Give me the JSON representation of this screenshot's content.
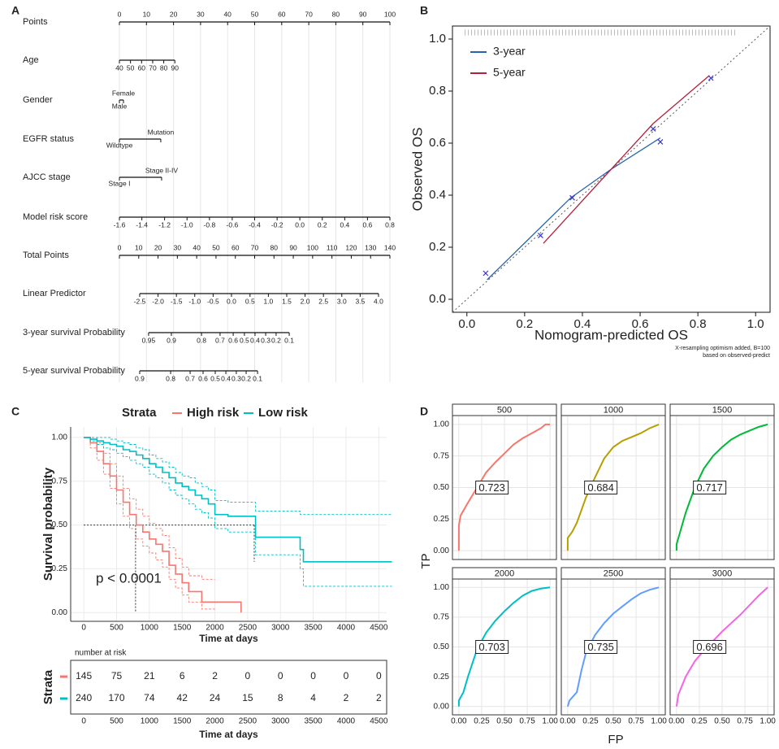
{
  "chart_data": [
    {
      "panel": "A",
      "type": "nomogram",
      "rows": [
        {
          "label": "Points",
          "scale": "points",
          "ticks": [
            0,
            10,
            20,
            30,
            40,
            50,
            60,
            70,
            80,
            90,
            100
          ]
        },
        {
          "label": "Age",
          "scale": "points",
          "ticks": [
            "40",
            "50",
            "60",
            "70",
            "80",
            "90"
          ],
          "points": [
            0,
            4.1,
            8.2,
            12.3,
            16.4,
            20.5
          ]
        },
        {
          "label": "Gender",
          "scale": "points",
          "ticks": [
            "Male",
            "Female"
          ],
          "points": [
            0,
            1.5
          ]
        },
        {
          "label": "EGFR status",
          "scale": "points",
          "ticks": [
            "Wildtype",
            "Mutation"
          ],
          "points": [
            0,
            15.3
          ]
        },
        {
          "label": "AJCC stage",
          "scale": "points",
          "ticks": [
            "Stage I",
            "Stage II-IV"
          ],
          "points": [
            0,
            15.6
          ]
        },
        {
          "label": "Model risk score",
          "scale": "points",
          "ticks": [
            "-1.6",
            "-1.4",
            "-1.2",
            "-1.0",
            "-0.8",
            "-0.6",
            "-0.4",
            "-0.2",
            "0.0",
            "0.2",
            "0.4",
            "0.6",
            "0.8"
          ],
          "points": [
            0,
            8.3,
            16.7,
            25,
            33.3,
            41.7,
            50,
            58.3,
            66.7,
            75,
            83.3,
            91.7,
            100
          ]
        },
        {
          "label": "Total Points",
          "scale": "total",
          "ticks": [
            0,
            10,
            20,
            30,
            40,
            50,
            60,
            70,
            80,
            90,
            100,
            110,
            120,
            130,
            140
          ]
        },
        {
          "label": "Linear Predictor",
          "scale": "total",
          "ticks": [
            "-2.5",
            "-2.0",
            "-1.5",
            "-1.0",
            "-0.5",
            "0.0",
            "0.5",
            "1.0",
            "1.5",
            "2.0",
            "2.5",
            "3.0",
            "3.5",
            "4.0"
          ],
          "points": [
            10.5,
            20.0,
            29.5,
            39.0,
            48.5,
            58.0,
            67.6,
            77.1,
            86.6,
            96.1,
            105.6,
            115.1,
            124.6,
            134.1
          ]
        },
        {
          "label": "3-year survival Probability",
          "scale": "total",
          "ticks": [
            "0.95",
            "0.9",
            "0.8",
            "0.7",
            "0.6",
            "0.5",
            "0.4",
            "0.3",
            "0.2",
            "0.1"
          ],
          "points": [
            15.1,
            26.9,
            42.5,
            52.1,
            58.9,
            64.7,
            70.2,
            75.7,
            81.1,
            87.9
          ]
        },
        {
          "label": "5-year survival Probability",
          "scale": "total",
          "ticks": [
            "0.9",
            "0.8",
            "0.7",
            "0.6",
            "0.5",
            "0.4",
            "0.3",
            "0.2",
            "0.1"
          ],
          "points": [
            10.5,
            26.5,
            36.6,
            43.3,
            49.6,
            55.1,
            60.5,
            65.6,
            71.5
          ]
        }
      ]
    },
    {
      "panel": "B",
      "type": "line",
      "xlabel": "Nomogram-predicted OS",
      "ylabel": "Observed OS",
      "xlim": [
        -0.05,
        1.05
      ],
      "ylim": [
        -0.05,
        1.05
      ],
      "xticks": [
        {
          "value": 0,
          "label": "0.0"
        },
        0.2,
        0.4,
        0.6,
        0.8,
        {
          "value": 1,
          "label": "1.0"
        }
      ],
      "yticks": [
        {
          "value": 0,
          "label": "0.0"
        },
        0.2,
        0.4,
        0.6,
        0.8,
        {
          "value": 1,
          "label": "1.0"
        }
      ],
      "legend": "top-left",
      "reference_line": true,
      "series": [
        {
          "name": "3-year",
          "color": "#2a64ad",
          "x": [
            0.07,
            0.36,
            0.5,
            0.67
          ],
          "values": [
            0.075,
            0.39,
            0.5,
            0.62
          ]
        },
        {
          "name": "5-year",
          "color": "#b3203c",
          "x": [
            0.265,
            0.5,
            0.645,
            0.84
          ],
          "values": [
            0.215,
            0.5,
            0.675,
            0.86
          ]
        }
      ],
      "markers": {
        "color": "#3434d4",
        "x": [
          0.065,
          0.255,
          0.365,
          0.645,
          0.67,
          0.845
        ],
        "values": [
          0.1,
          0.245,
          0.39,
          0.655,
          0.605,
          0.85
        ]
      },
      "note": [
        "X-resampling optimism added, B=100",
        "based on observed-predict"
      ]
    },
    {
      "panel": "C",
      "type": "step",
      "legend_title": "Strata",
      "legend": "top",
      "xlabel": "Time at days",
      "ylabel": "Survival probability",
      "annotation": "p < 0.0001",
      "xlim": [
        -200,
        4620
      ],
      "ylim": [
        -0.05,
        1.06
      ],
      "xticks": [
        0,
        500,
        1000,
        1500,
        2000,
        2500,
        3000,
        3500,
        4000,
        4500
      ],
      "yticks": [
        {
          "value": 0,
          "label": "0.00"
        },
        0.25,
        {
          "value": 0.5,
          "label": "0.50"
        },
        0.75,
        {
          "value": 1,
          "label": "1.00"
        }
      ],
      "grid": true,
      "median_level": 0.5,
      "series": [
        {
          "name": "High risk",
          "color": "#F8766D",
          "median": 790,
          "x": [
            0,
            100,
            200,
            300,
            400,
            500,
            600,
            700,
            800,
            900,
            1000,
            1100,
            1200,
            1300,
            1400,
            1500,
            1600,
            1800,
            2000,
            2400
          ],
          "values": [
            1,
            0.97,
            0.92,
            0.85,
            0.78,
            0.7,
            0.63,
            0.56,
            0.5,
            0.46,
            0.42,
            0.39,
            0.35,
            0.27,
            0.22,
            0.17,
            0.12,
            0.06,
            0.06,
            0
          ],
          "upper": [
            1,
            1,
            0.97,
            0.91,
            0.85,
            0.78,
            0.71,
            0.65,
            0.59,
            0.55,
            0.51,
            0.48,
            0.44,
            0.37,
            0.31,
            0.26,
            0.21,
            0.19,
            0.19,
            null
          ],
          "lower": [
            1,
            0.94,
            0.87,
            0.79,
            0.71,
            0.62,
            0.55,
            0.48,
            0.42,
            0.38,
            0.34,
            0.3,
            0.26,
            0.19,
            0.14,
            0.1,
            0.06,
            0.02,
            0.02,
            null
          ]
        },
        {
          "name": "Low risk",
          "color": "#00BFC4",
          "median": 2600,
          "x": [
            0,
            100,
            200,
            300,
            400,
            500,
            600,
            700,
            800,
            900,
            1000,
            1100,
            1200,
            1300,
            1400,
            1500,
            1600,
            1700,
            1800,
            1900,
            2000,
            2200,
            2620,
            3300,
            3350,
            4700
          ],
          "values": [
            1,
            0.99,
            0.98,
            0.97,
            0.96,
            0.95,
            0.93,
            0.92,
            0.9,
            0.88,
            0.85,
            0.83,
            0.8,
            0.77,
            0.74,
            0.72,
            0.7,
            0.67,
            0.65,
            0.62,
            0.56,
            0.55,
            0.43,
            0.36,
            0.29,
            0.29
          ],
          "upper": [
            1,
            1,
            1,
            1,
            0.99,
            0.98,
            0.97,
            0.96,
            0.94,
            0.93,
            0.9,
            0.88,
            0.86,
            0.83,
            0.8,
            0.78,
            0.77,
            0.74,
            0.72,
            0.7,
            0.64,
            0.63,
            0.58,
            0.56,
            0.56,
            0.56
          ],
          "lower": [
            1,
            0.98,
            0.96,
            0.94,
            0.93,
            0.91,
            0.89,
            0.87,
            0.85,
            0.83,
            0.79,
            0.77,
            0.74,
            0.7,
            0.67,
            0.65,
            0.62,
            0.59,
            0.57,
            0.54,
            0.48,
            0.46,
            0.33,
            0.25,
            0.15,
            0.15
          ]
        }
      ]
    },
    {
      "type": "table",
      "title": "number at risk",
      "ylabel": "Strata",
      "xlabel": "Time at days",
      "xlim": [
        -200,
        4620
      ],
      "xticks": [
        0,
        500,
        1000,
        1500,
        2000,
        2500,
        3000,
        3500,
        4000,
        4500
      ],
      "rows": [
        {
          "color": "#F8766D",
          "values": [
            145,
            75,
            21,
            6,
            2,
            0,
            0,
            0,
            0,
            0
          ]
        },
        {
          "color": "#00BFC4",
          "values": [
            240,
            170,
            74,
            42,
            24,
            15,
            8,
            4,
            2,
            2
          ]
        }
      ]
    },
    {
      "panel": "D",
      "type": "roc",
      "xlabel": "FP",
      "ylabel": "TP",
      "xlim": [
        -0.07,
        1.07
      ],
      "ylim": [
        -0.07,
        1.07
      ],
      "grid": true,
      "xticks": [
        {
          "value": 0,
          "label": "0.00"
        },
        0.25,
        {
          "value": 0.5,
          "label": "0.50"
        },
        0.75,
        {
          "value": 1,
          "label": "1.00"
        }
      ],
      "yticks": [
        {
          "value": 0,
          "label": "0.00"
        },
        0.25,
        {
          "value": 0.5,
          "label": "0.50"
        },
        0.75,
        {
          "value": 1,
          "label": "1.00"
        }
      ],
      "facets": [
        {
          "title": 500,
          "auc": 0.723,
          "color": "#F8766D",
          "x": [
            0,
            0,
            0.02,
            0.1,
            0.2,
            0.3,
            0.4,
            0.5,
            0.6,
            0.7,
            0.8,
            0.9,
            0.95,
            1
          ],
          "values": [
            0,
            0.2,
            0.28,
            0.38,
            0.5,
            0.62,
            0.7,
            0.77,
            0.84,
            0.89,
            0.93,
            0.97,
            1,
            1
          ]
        },
        {
          "title": 1000,
          "auc": 0.684,
          "color": "#B79F00",
          "x": [
            0,
            0,
            0.05,
            0.1,
            0.2,
            0.3,
            0.4,
            0.5,
            0.6,
            0.7,
            0.8,
            0.9,
            1
          ],
          "values": [
            0,
            0.1,
            0.15,
            0.22,
            0.42,
            0.58,
            0.73,
            0.82,
            0.87,
            0.9,
            0.93,
            0.97,
            1
          ]
        },
        {
          "title": 1500,
          "auc": 0.717,
          "color": "#00BA38",
          "x": [
            0,
            0,
            0.02,
            0.1,
            0.2,
            0.3,
            0.4,
            0.5,
            0.6,
            0.7,
            0.8,
            0.9,
            1
          ],
          "values": [
            0,
            0.05,
            0.1,
            0.3,
            0.5,
            0.65,
            0.75,
            0.82,
            0.88,
            0.92,
            0.95,
            0.98,
            1
          ]
        },
        {
          "title": 2000,
          "auc": 0.703,
          "color": "#00BFC4",
          "x": [
            0,
            0,
            0.05,
            0.1,
            0.2,
            0.3,
            0.4,
            0.5,
            0.6,
            0.7,
            0.8,
            0.9,
            1
          ],
          "values": [
            0,
            0.05,
            0.12,
            0.25,
            0.48,
            0.62,
            0.72,
            0.8,
            0.87,
            0.93,
            0.97,
            0.99,
            1
          ]
        },
        {
          "title": 2500,
          "auc": 0.735,
          "color": "#619CFF",
          "x": [
            0,
            0.02,
            0.1,
            0.15,
            0.2,
            0.3,
            0.4,
            0.5,
            0.6,
            0.7,
            0.8,
            0.9,
            1
          ],
          "values": [
            0,
            0.05,
            0.12,
            0.3,
            0.45,
            0.6,
            0.7,
            0.78,
            0.84,
            0.9,
            0.95,
            0.98,
            1
          ]
        },
        {
          "title": 3000,
          "auc": 0.696,
          "color": "#F564E3",
          "x": [
            0,
            0.02,
            0.1,
            0.2,
            0.3,
            0.4,
            0.5,
            0.6,
            0.7,
            0.8,
            0.9,
            1
          ],
          "values": [
            0,
            0.1,
            0.25,
            0.38,
            0.47,
            0.55,
            0.63,
            0.7,
            0.77,
            0.85,
            0.93,
            1
          ]
        }
      ]
    }
  ]
}
